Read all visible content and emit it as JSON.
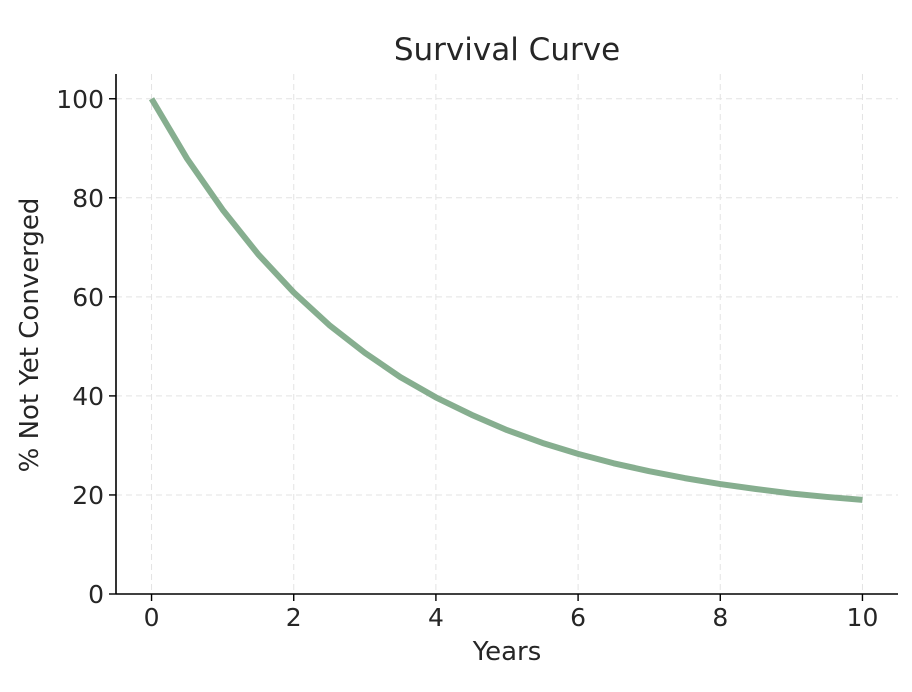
{
  "chart_data": {
    "type": "line",
    "title": "Survival Curve",
    "xlabel": "Years",
    "ylabel": "% Not Yet Converged",
    "xlim": [
      -0.5,
      10.5
    ],
    "ylim": [
      0,
      105
    ],
    "x_ticks": [
      0,
      2,
      4,
      6,
      8,
      10
    ],
    "y_ticks": [
      0,
      20,
      40,
      60,
      80,
      100
    ],
    "grid": true,
    "legend": "none",
    "series": [
      {
        "color": "#86ae8f",
        "x": [
          0,
          0.5,
          1,
          1.5,
          2,
          2.5,
          3,
          3.5,
          4,
          4.5,
          5,
          5.5,
          6,
          6.5,
          7,
          7.5,
          8,
          8.5,
          9,
          9.5,
          10
        ],
        "y": [
          100,
          87.9,
          77.6,
          68.6,
          60.9,
          54.3,
          48.7,
          43.8,
          39.7,
          36.2,
          33.1,
          30.5,
          28.3,
          26.4,
          24.8,
          23.4,
          22.2,
          21.2,
          20.3,
          19.6,
          19.0
        ]
      }
    ]
  }
}
